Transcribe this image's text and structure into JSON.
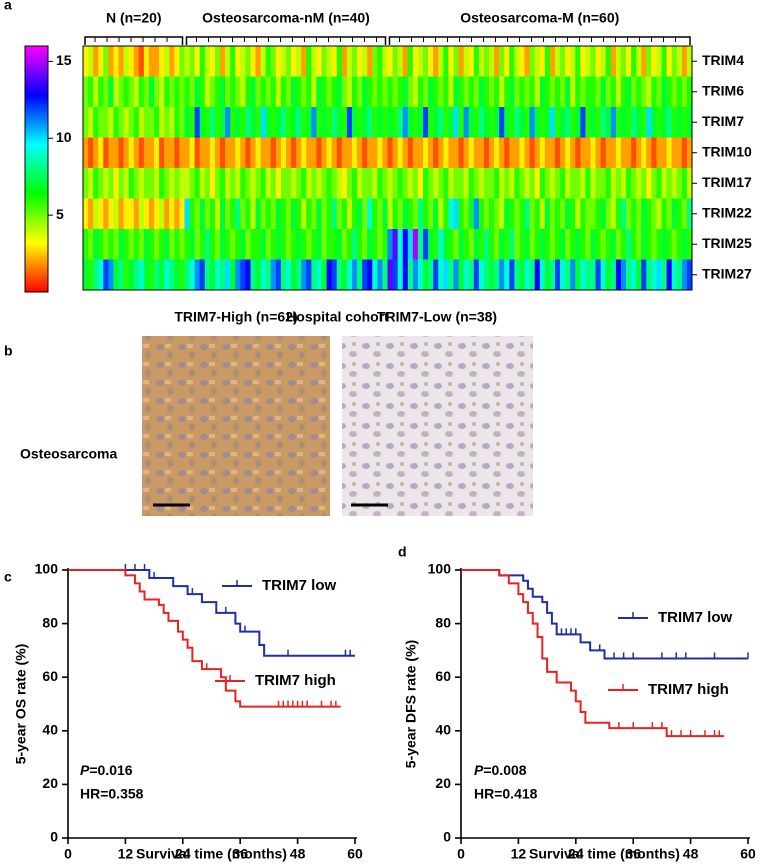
{
  "chart_data": [
    {
      "type": "heatmap",
      "panel": "a",
      "xlabel": "Hospital cohort",
      "colormap": "rainbow",
      "clim": [
        0,
        16
      ],
      "cticks": [
        5,
        10,
        15
      ],
      "groups": [
        {
          "label": "N (n=20)",
          "size": 20
        },
        {
          "label": "Osteosarcoma-nM (n=40)",
          "size": 40
        },
        {
          "label": "Osteosarcoma-M (n=60)",
          "size": 60
        }
      ],
      "rows": [
        "TRIM4",
        "TRIM6",
        "TRIM7",
        "TRIM10",
        "TRIM17",
        "TRIM22",
        "TRIM25",
        "TRIM27"
      ],
      "values": [
        [
          3,
          4,
          2,
          3,
          5,
          2,
          3,
          2,
          4,
          3,
          2,
          1,
          3,
          2,
          2,
          3,
          4,
          2,
          3,
          5,
          4,
          5,
          3,
          6,
          4,
          3,
          5,
          2,
          4,
          6,
          3,
          4,
          5,
          3,
          2,
          4,
          6,
          5,
          3,
          4,
          5,
          3,
          4,
          2,
          6,
          4,
          3,
          5,
          4,
          3,
          6,
          2,
          4,
          5,
          3,
          4,
          2,
          5,
          6,
          4,
          3,
          5,
          4,
          2,
          6,
          3,
          4,
          5,
          3,
          2,
          4,
          6,
          3,
          5,
          2,
          4,
          3,
          6,
          4,
          5,
          4,
          2,
          5,
          3,
          6,
          4,
          3,
          2,
          5,
          4,
          3,
          6,
          2,
          4,
          5,
          3,
          4,
          6,
          3,
          4,
          5,
          3,
          4,
          6,
          2,
          4,
          5,
          3,
          6,
          4,
          2,
          5,
          3,
          4,
          6,
          3,
          5,
          4,
          2,
          4
        ],
        [
          5,
          6,
          4,
          6,
          5,
          7,
          4,
          5,
          6,
          5,
          4,
          6,
          5,
          7,
          5,
          4,
          6,
          5,
          6,
          5,
          6,
          5,
          7,
          6,
          4,
          5,
          6,
          7,
          5,
          6,
          5,
          4,
          6,
          7,
          5,
          6,
          5,
          6,
          4,
          6,
          5,
          7,
          6,
          5,
          6,
          4,
          7,
          6,
          5,
          6,
          7,
          5,
          4,
          6,
          5,
          7,
          6,
          5,
          6,
          5,
          6,
          5,
          6,
          7,
          5,
          4,
          6,
          5,
          7,
          6,
          5,
          6,
          4,
          7,
          6,
          5,
          6,
          5,
          7,
          6,
          5,
          6,
          4,
          6,
          7,
          5,
          6,
          5,
          6,
          4,
          7,
          6,
          5,
          6,
          5,
          7,
          4,
          6,
          5,
          6,
          6,
          5,
          7,
          5,
          6,
          4,
          6,
          7,
          5,
          6,
          5,
          4,
          6,
          5,
          7,
          6,
          5,
          6,
          5,
          6
        ],
        [
          5,
          4,
          6,
          5,
          5,
          4,
          6,
          5,
          4,
          5,
          6,
          4,
          5,
          5,
          6,
          4,
          5,
          4,
          6,
          5,
          7,
          6,
          12,
          7,
          6,
          8,
          6,
          7,
          11,
          6,
          7,
          6,
          8,
          7,
          6,
          10,
          7,
          6,
          7,
          8,
          6,
          7,
          8,
          6,
          7,
          11,
          6,
          7,
          6,
          8,
          7,
          6,
          12,
          7,
          6,
          7,
          8,
          6,
          7,
          6,
          7,
          6,
          8,
          11,
          7,
          6,
          7,
          12,
          6,
          7,
          8,
          6,
          7,
          10,
          6,
          11,
          7,
          6,
          8,
          7,
          6,
          7,
          12,
          7,
          6,
          8,
          7,
          6,
          11,
          7,
          6,
          7,
          10,
          6,
          7,
          8,
          6,
          7,
          12,
          6,
          7,
          6,
          8,
          7,
          11,
          6,
          7,
          6,
          8,
          7,
          6,
          10,
          7,
          6,
          7,
          8,
          6,
          7,
          6,
          7
        ],
        [
          2,
          1,
          2,
          3,
          1,
          2,
          2,
          1,
          2,
          3,
          2,
          1,
          2,
          2,
          3,
          1,
          2,
          2,
          1,
          2,
          2,
          3,
          1,
          2,
          2,
          3,
          2,
          1,
          2,
          2,
          3,
          2,
          1,
          2,
          3,
          2,
          2,
          1,
          2,
          3,
          2,
          1,
          2,
          3,
          2,
          2,
          1,
          2,
          3,
          2,
          1,
          2,
          2,
          3,
          2,
          1,
          2,
          2,
          3,
          2,
          1,
          2,
          3,
          2,
          1,
          2,
          2,
          3,
          2,
          1,
          2,
          3,
          2,
          2,
          1,
          2,
          3,
          2,
          2,
          1,
          2,
          3,
          2,
          1,
          2,
          2,
          3,
          2,
          1,
          2,
          3,
          2,
          2,
          1,
          2,
          3,
          2,
          1,
          2,
          2,
          3,
          2,
          1,
          2,
          2,
          3,
          2,
          2,
          1,
          2,
          3,
          2,
          1,
          2,
          2,
          3,
          2,
          2,
          1,
          2
        ],
        [
          5,
          4,
          6,
          5,
          4,
          5,
          3,
          5,
          4,
          6,
          5,
          4,
          5,
          5,
          4,
          6,
          5,
          4,
          5,
          4,
          4,
          5,
          6,
          4,
          5,
          3,
          5,
          6,
          4,
          5,
          4,
          6,
          5,
          4,
          5,
          6,
          4,
          5,
          3,
          5,
          5,
          4,
          5,
          6,
          4,
          5,
          4,
          5,
          6,
          5,
          4,
          3,
          5,
          6,
          4,
          5,
          5,
          4,
          6,
          5,
          4,
          5,
          6,
          5,
          4,
          5,
          3,
          6,
          5,
          4,
          5,
          6,
          4,
          5,
          5,
          4,
          6,
          5,
          4,
          5,
          5,
          6,
          4,
          5,
          4,
          6,
          5,
          4,
          5,
          3,
          6,
          5,
          4,
          5,
          6,
          4,
          5,
          5,
          4,
          6,
          4,
          5,
          5,
          6,
          4,
          5,
          4,
          6,
          5,
          4,
          5,
          3,
          5,
          6,
          4,
          5,
          4,
          5,
          6,
          4
        ],
        [
          3,
          2,
          4,
          3,
          2,
          3,
          4,
          2,
          3,
          3,
          2,
          4,
          3,
          2,
          3,
          4,
          2,
          3,
          2,
          3,
          10,
          6,
          5,
          7,
          5,
          6,
          4,
          7,
          5,
          6,
          8,
          5,
          6,
          4,
          7,
          5,
          6,
          5,
          7,
          6,
          5,
          7,
          6,
          4,
          6,
          5,
          7,
          5,
          6,
          8,
          5,
          6,
          4,
          6,
          7,
          5,
          9,
          6,
          5,
          7,
          4,
          6,
          5,
          7,
          6,
          5,
          8,
          6,
          5,
          7,
          4,
          6,
          9,
          10,
          6,
          5,
          7,
          11,
          6,
          5,
          6,
          5,
          4,
          7,
          6,
          5,
          6,
          8,
          5,
          6,
          4,
          7,
          5,
          6,
          5,
          7,
          6,
          4,
          6,
          5,
          5,
          6,
          7,
          5,
          4,
          6,
          8,
          5,
          6,
          5,
          7,
          6,
          5,
          4,
          6,
          5,
          7,
          6,
          5,
          8
        ],
        [
          6,
          5,
          7,
          6,
          5,
          6,
          5,
          7,
          6,
          5,
          6,
          5,
          7,
          6,
          5,
          6,
          7,
          5,
          6,
          5,
          6,
          7,
          5,
          6,
          8,
          6,
          5,
          7,
          6,
          5,
          6,
          7,
          5,
          6,
          6,
          7,
          5,
          6,
          7,
          6,
          5,
          6,
          7,
          6,
          5,
          6,
          7,
          5,
          6,
          6,
          7,
          5,
          6,
          8,
          6,
          5,
          7,
          6,
          5,
          6,
          11,
          14,
          9,
          13,
          10,
          15,
          8,
          12,
          7,
          6,
          9,
          7,
          6,
          5,
          7,
          6,
          5,
          7,
          6,
          8,
          6,
          5,
          7,
          6,
          8,
          5,
          6,
          7,
          5,
          6,
          7,
          6,
          5,
          6,
          7,
          5,
          6,
          7,
          6,
          5,
          7,
          6,
          5,
          6,
          7,
          5,
          6,
          8,
          6,
          5,
          7,
          6,
          5,
          6,
          7,
          6,
          5,
          6,
          7,
          6
        ],
        [
          7,
          6,
          8,
          9,
          12,
          11,
          7,
          8,
          6,
          7,
          8,
          9,
          7,
          6,
          8,
          7,
          9,
          8,
          7,
          6,
          8,
          9,
          11,
          12,
          8,
          7,
          9,
          8,
          10,
          7,
          11,
          12,
          13,
          8,
          7,
          9,
          8,
          11,
          12,
          8,
          9,
          7,
          8,
          11,
          12,
          8,
          9,
          7,
          13,
          12,
          8,
          7,
          9,
          11,
          8,
          12,
          13,
          9,
          11,
          8,
          14,
          12,
          9,
          13,
          8,
          11,
          9,
          7,
          8,
          12,
          9,
          10,
          8,
          11,
          7,
          9,
          8,
          12,
          9,
          8,
          7,
          8,
          11,
          9,
          12,
          8,
          7,
          9,
          8,
          13,
          9,
          7,
          8,
          12,
          9,
          8,
          11,
          7,
          9,
          8,
          8,
          12,
          9,
          7,
          8,
          13,
          11,
          8,
          9,
          7,
          12,
          8,
          9,
          10,
          8,
          13,
          9,
          8,
          11,
          12
        ]
      ]
    },
    {
      "type": "km",
      "panel": "c",
      "xlabel": "Survival time (months)",
      "ylabel": "5-year OS rate (%)",
      "xlim": [
        0,
        60
      ],
      "ylim": [
        0,
        100
      ],
      "xticks": [
        0,
        12,
        24,
        36,
        48,
        60
      ],
      "yticks": [
        0,
        20,
        40,
        60,
        80,
        100
      ],
      "p_symbol": "P",
      "p_value": "=0.016",
      "hr": "HR=0.358",
      "series": [
        {
          "name": "TRIM7 low",
          "color": "#1f2ea8",
          "x": [
            0,
            17,
            22,
            25,
            28,
            31,
            35,
            36,
            40,
            41,
            60
          ],
          "values": [
            100,
            97,
            94,
            91,
            88,
            84,
            80,
            77,
            72,
            68,
            68
          ],
          "censored_x": [
            12,
            14,
            16,
            18,
            26,
            33,
            37,
            46,
            58,
            59
          ],
          "censored_y": [
            100,
            100,
            100,
            97,
            91,
            84,
            77,
            68,
            68,
            68
          ]
        },
        {
          "name": "TRIM7 high",
          "color": "#e8231f",
          "x": [
            0,
            12,
            14,
            15,
            16,
            19,
            20,
            21,
            23,
            24,
            25,
            26,
            28,
            32,
            33,
            35,
            36,
            57
          ],
          "values": [
            100,
            98,
            95,
            92,
            89,
            87,
            84,
            81,
            77,
            74,
            71,
            66,
            63,
            60,
            55,
            51,
            49,
            49
          ],
          "censored_x": [
            29,
            44,
            45,
            46,
            47,
            48,
            49,
            50,
            53,
            55,
            56
          ],
          "censored_y": [
            63,
            49,
            49,
            49,
            49,
            49,
            49,
            49,
            49,
            49,
            49
          ]
        }
      ]
    },
    {
      "type": "km",
      "panel": "d",
      "xlabel": "Survival time (months)",
      "ylabel": "5-year DFS rate (%)",
      "xlim": [
        0,
        60
      ],
      "ylim": [
        0,
        100
      ],
      "xticks": [
        0,
        12,
        24,
        36,
        48,
        60
      ],
      "yticks": [
        0,
        20,
        40,
        60,
        80,
        100
      ],
      "p_symbol": "P",
      "p_value": "=0.008",
      "hr": "HR=0.418",
      "series": [
        {
          "name": "TRIM7 low",
          "color": "#1f2ea8",
          "x": [
            0,
            8,
            13,
            14,
            15,
            17,
            18,
            19,
            20,
            25,
            27,
            30,
            60
          ],
          "values": [
            100,
            98,
            96,
            93,
            90,
            88,
            84,
            80,
            76,
            73,
            70,
            67,
            67
          ],
          "censored_x": [
            21,
            22,
            23,
            24,
            29,
            32,
            34,
            36,
            42,
            45,
            47,
            53,
            60
          ],
          "censored_y": [
            76,
            76,
            76,
            76,
            70,
            67,
            67,
            67,
            67,
            67,
            67,
            67,
            67
          ]
        },
        {
          "name": "TRIM7 high",
          "color": "#e8231f",
          "x": [
            0,
            8,
            10,
            12,
            13,
            14,
            15,
            16,
            17,
            18,
            20,
            23,
            24,
            25,
            26,
            31,
            43,
            55
          ],
          "values": [
            100,
            98,
            95,
            91,
            88,
            84,
            80,
            75,
            67,
            62,
            58,
            55,
            51,
            47,
            43,
            41,
            38,
            38
          ],
          "censored_x": [
            20,
            33,
            36,
            40,
            42,
            44,
            46,
            48,
            51,
            53,
            54
          ],
          "censored_y": [
            58,
            41,
            41,
            41,
            41,
            38,
            38,
            38,
            38,
            38,
            38
          ]
        }
      ]
    }
  ],
  "panel_b": {
    "panel": "b",
    "columns": [
      "TRIM7-High (n=62)",
      "TRIM7-Low (n=38)"
    ],
    "row": "Osteosarcoma"
  }
}
